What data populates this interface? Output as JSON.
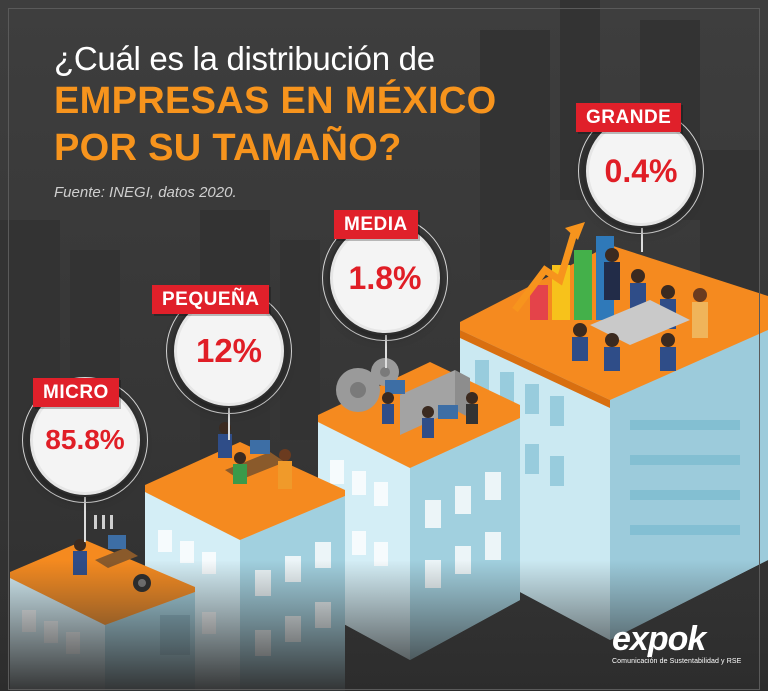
{
  "header": {
    "question": "¿Cuál es la distribución de",
    "headline_line1": "EMPRESAS EN MÉXICO",
    "headline_line2": "POR SU TAMAÑO?",
    "source": "Fuente: INEGI, datos 2020."
  },
  "categories": [
    {
      "label": "MICRO",
      "value": "85.8%"
    },
    {
      "label": "PEQUEÑA",
      "value": "12%"
    },
    {
      "label": "MEDIA",
      "value": "1.8%"
    },
    {
      "label": "GRANDE",
      "value": "0.4%"
    }
  ],
  "brand": {
    "name": "expok",
    "tagline": "Comunicación de Sustentabilidad y RSE"
  },
  "colors": {
    "accent_orange": "#f7941d",
    "tag_red": "#e0202a",
    "value_red": "#e01e26",
    "building_blue": "#bfe3ee",
    "roof_orange": "#f58a1f"
  }
}
